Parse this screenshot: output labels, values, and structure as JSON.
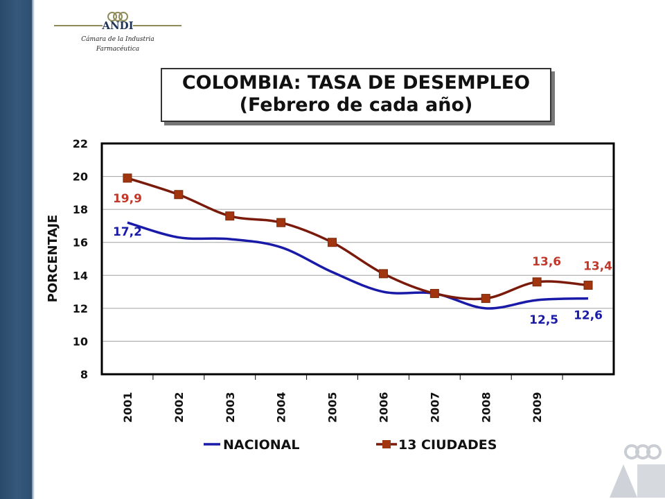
{
  "logo": {
    "name": "ANDI",
    "subtitle_line1": "Cámara de la Industria",
    "subtitle_line2": "Farmacéutica"
  },
  "title": {
    "line1": "COLOMBIA: TASA DE DESEMPLEO",
    "line2": "(Febrero de cada año)"
  },
  "colors": {
    "nacional": "#1a1aa8",
    "ciudades": "#7a1a0a",
    "label_ciudades": "#c0392b",
    "sidebar": "#2f5273"
  },
  "chart_data": {
    "type": "line",
    "categories": [
      "2001",
      "2002",
      "2003",
      "2004",
      "2005",
      "2006",
      "2007",
      "2008",
      "2009",
      ""
    ],
    "ylabel": "PORCENTAJE",
    "ylim": [
      8,
      22
    ],
    "yticks": [
      "8",
      "10",
      "12",
      "14",
      "16",
      "18",
      "20",
      "22"
    ],
    "grid": true,
    "legend_position": "bottom",
    "series": [
      {
        "name": "NACIONAL",
        "values": [
          17.2,
          16.3,
          16.2,
          15.7,
          14.2,
          13.0,
          12.9,
          12.0,
          12.5,
          12.6
        ],
        "marker": "none"
      },
      {
        "name": "13 CIUDADES",
        "values": [
          19.9,
          18.9,
          17.6,
          17.2,
          16.0,
          14.1,
          12.9,
          12.6,
          13.6,
          13.4
        ],
        "marker": "square"
      }
    ],
    "data_labels": [
      {
        "series": "NACIONAL",
        "index": 0,
        "text": "17,2"
      },
      {
        "series": "13 CIUDADES",
        "index": 0,
        "text": "19,9"
      },
      {
        "series": "13 CIUDADES",
        "index": 8,
        "text": "13,6"
      },
      {
        "series": "13 CIUDADES",
        "index": 9,
        "text": "13,4"
      },
      {
        "series": "NACIONAL",
        "index": 8,
        "text": "12,5"
      },
      {
        "series": "NACIONAL",
        "index": 9,
        "text": "12,6"
      }
    ]
  }
}
